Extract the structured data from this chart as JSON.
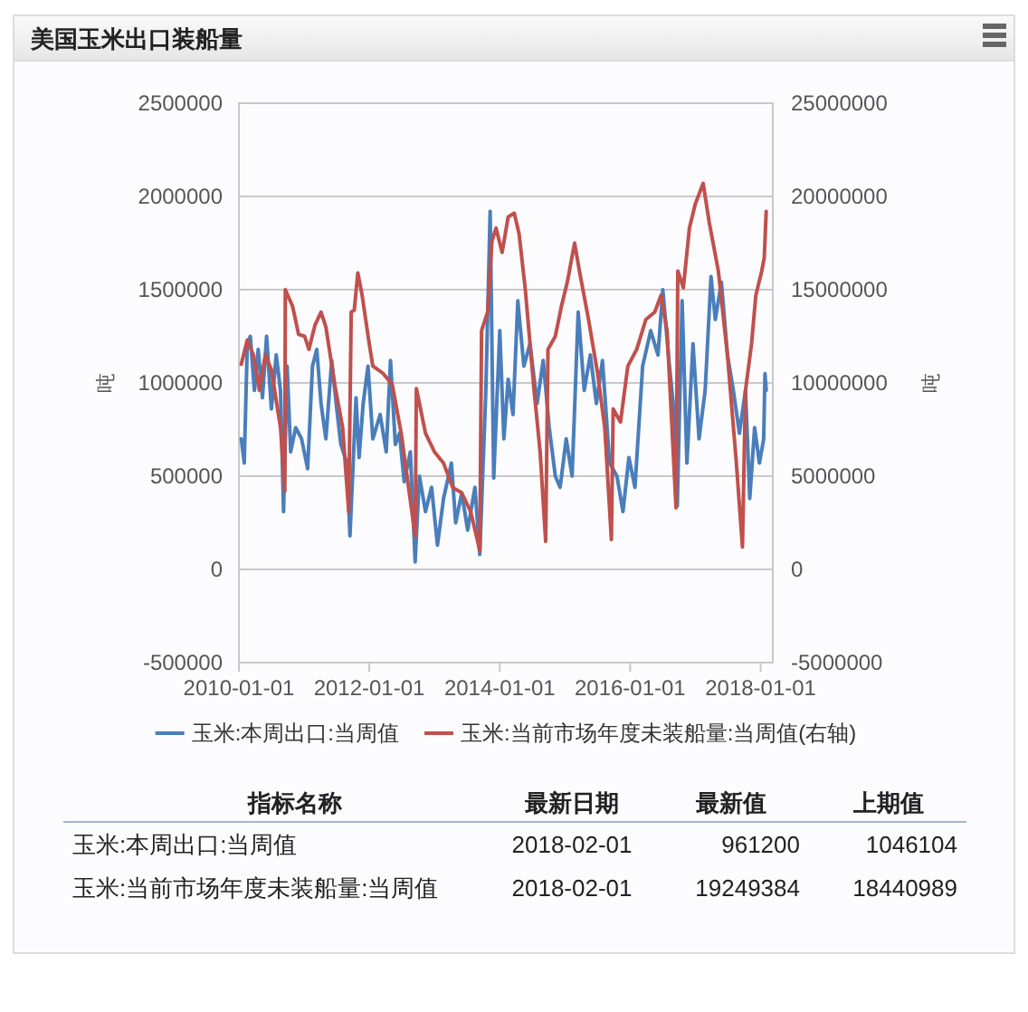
{
  "chart_data": {
    "type": "line",
    "title": "美国玉米出口装船量",
    "ylabel": "吨",
    "y2label": "吨",
    "xlim": [
      "2010-01-01",
      "2018-03-10"
    ],
    "xticks": [
      "2010-01-01",
      "2012-01-01",
      "2014-01-01",
      "2016-01-01",
      "2018-01-01"
    ],
    "ylim": [
      -500000,
      2500000
    ],
    "yticks": [
      -500000,
      0,
      500000,
      1000000,
      1500000,
      2000000,
      2500000
    ],
    "y2lim": [
      -5000000,
      25000000
    ],
    "y2ticks": [
      -5000000,
      0,
      5000000,
      10000000,
      15000000,
      20000000,
      25000000
    ],
    "grid": "y",
    "legend": "bottom",
    "series": [
      {
        "name": "玉米:本周出口:当周值",
        "color": "#4a7ebb",
        "x": [
          "2010-01-14",
          "2010-01-31",
          "2010-02-17",
          "2010-03-06",
          "2010-03-29",
          "2010-04-19",
          "2010-05-13",
          "2010-06-05",
          "2010-07-02",
          "2010-07-29",
          "2010-08-22",
          "2010-09-08",
          "2010-09-28",
          "2010-10-18",
          "2010-11-15",
          "2010-12-18",
          "2011-01-21",
          "2011-02-17",
          "2011-03-13",
          "2011-04-06",
          "2011-05-03",
          "2011-06-05",
          "2011-07-03",
          "2011-07-26",
          "2011-08-29",
          "2011-09-15",
          "2011-10-19",
          "2011-11-05",
          "2011-11-28",
          "2011-12-25",
          "2012-01-21",
          "2012-03-02",
          "2012-04-05",
          "2012-04-29",
          "2012-05-26",
          "2012-06-18",
          "2012-07-15",
          "2012-08-18",
          "2012-09-14",
          "2012-10-08",
          "2012-11-11",
          "2012-12-15",
          "2013-01-17",
          "2013-02-20",
          "2013-04-05",
          "2013-04-29",
          "2013-06-02",
          "2013-07-05",
          "2013-08-15",
          "2013-09-11",
          "2013-10-15",
          "2013-11-08",
          "2013-11-28",
          "2014-01-01",
          "2014-01-24",
          "2014-02-17",
          "2014-03-16",
          "2014-04-12",
          "2014-05-16",
          "2014-06-19",
          "2014-07-29",
          "2014-09-01",
          "2014-10-05",
          "2014-11-08",
          "2014-12-05",
          "2015-01-08",
          "2015-02-10",
          "2015-03-16",
          "2015-04-19",
          "2015-05-23",
          "2015-06-26",
          "2015-07-30",
          "2015-09-08",
          "2015-10-19",
          "2015-11-22",
          "2015-12-25",
          "2016-01-28",
          "2016-03-11",
          "2016-04-25",
          "2016-06-05",
          "2016-07-02",
          "2016-08-05",
          "2016-08-29",
          "2016-09-21",
          "2016-10-18",
          "2016-11-14",
          "2016-12-18",
          "2017-01-21",
          "2017-02-24",
          "2017-03-29",
          "2017-04-22",
          "2017-05-26",
          "2017-06-29",
          "2017-08-01",
          "2017-09-04",
          "2017-10-08",
          "2017-11-01",
          "2017-11-28",
          "2017-12-25",
          "2018-01-18",
          "2018-01-25",
          "2018-02-01"
        ],
        "values": [
          700000,
          570000,
          1210000,
          1250000,
          960000,
          1180000,
          920000,
          1250000,
          860000,
          1150000,
          960000,
          310000,
          1090000,
          630000,
          760000,
          700000,
          540000,
          1090000,
          1180000,
          890000,
          700000,
          1120000,
          860000,
          670000,
          570000,
          180000,
          920000,
          600000,
          890000,
          1090000,
          700000,
          830000,
          630000,
          1120000,
          670000,
          730000,
          470000,
          630000,
          40000,
          500000,
          310000,
          440000,
          130000,
          380000,
          570000,
          250000,
          410000,
          210000,
          440000,
          80000,
          960000,
          1920000,
          490000,
          1280000,
          700000,
          1020000,
          830000,
          1440000,
          1090000,
          1210000,
          890000,
          1120000,
          760000,
          500000,
          440000,
          700000,
          500000,
          1380000,
          960000,
          1150000,
          890000,
          1120000,
          570000,
          500000,
          310000,
          600000,
          440000,
          1090000,
          1280000,
          1150000,
          1500000,
          1120000,
          890000,
          340000,
          1440000,
          570000,
          1210000,
          700000,
          960000,
          1570000,
          1340000,
          1540000,
          1150000,
          960000,
          730000,
          960000,
          380000,
          760000,
          570000,
          700000,
          1050000,
          960000
        ]
      },
      {
        "name": "玉米:当前市场年度未装船量:当周值(右轴)",
        "color": "#c0504d",
        "axis": "y2",
        "x": [
          "2010-01-14",
          "2010-02-17",
          "2010-03-23",
          "2010-04-26",
          "2010-05-29",
          "2010-07-02",
          "2010-08-22",
          "2010-09-15",
          "2010-09-18",
          "2010-10-29",
          "2010-12-01",
          "2011-01-04",
          "2011-01-28",
          "2011-03-03",
          "2011-04-06",
          "2011-05-03",
          "2011-06-22",
          "2011-08-05",
          "2011-09-08",
          "2011-09-22",
          "2011-10-09",
          "2011-10-29",
          "2011-11-22",
          "2012-01-01",
          "2012-01-21",
          "2012-03-19",
          "2012-05-09",
          "2012-06-28",
          "2012-09-14",
          "2012-09-21",
          "2012-11-11",
          "2012-12-31",
          "2013-02-20",
          "2013-04-12",
          "2013-06-02",
          "2013-07-22",
          "2013-09-11",
          "2013-09-21",
          "2013-10-25",
          "2013-11-18",
          "2013-12-11",
          "2014-01-14",
          "2014-02-17",
          "2014-03-23",
          "2014-04-19",
          "2014-05-23",
          "2014-07-12",
          "2014-08-15",
          "2014-09-15",
          "2014-09-28",
          "2014-11-08",
          "2014-12-12",
          "2015-01-14",
          "2015-02-24",
          "2015-03-23",
          "2015-05-13",
          "2015-07-03",
          "2015-08-12",
          "2015-09-18",
          "2015-09-28",
          "2015-11-08",
          "2015-12-19",
          "2016-02-07",
          "2016-03-29",
          "2016-05-18",
          "2016-06-22",
          "2016-07-26",
          "2016-09-14",
          "2016-09-24",
          "2016-10-25",
          "2016-11-28",
          "2016-12-31",
          "2017-02-13",
          "2017-03-19",
          "2017-05-09",
          "2017-06-29",
          "2017-08-18",
          "2017-09-21",
          "2017-10-08",
          "2017-11-11",
          "2017-12-05",
          "2018-01-07",
          "2018-01-21",
          "2018-02-01"
        ],
        "values": [
          11000000,
          12300000,
          11500000,
          9600000,
          11500000,
          10700000,
          7600000,
          4200000,
          15000000,
          14100000,
          12600000,
          12500000,
          11800000,
          13100000,
          13800000,
          13000000,
          9900000,
          7600000,
          3100000,
          13800000,
          13900000,
          15900000,
          14700000,
          12100000,
          10900000,
          10500000,
          9900000,
          7300000,
          1800000,
          9700000,
          7300000,
          6300000,
          5700000,
          4400000,
          4100000,
          3100000,
          1000000,
          12800000,
          13800000,
          17600000,
          18300000,
          17000000,
          18900000,
          19100000,
          18000000,
          15100000,
          9600000,
          6300000,
          1500000,
          11800000,
          12500000,
          14100000,
          15400000,
          17500000,
          16000000,
          13400000,
          10500000,
          7600000,
          1600000,
          8600000,
          7900000,
          10900000,
          11800000,
          13400000,
          13800000,
          14700000,
          12800000,
          3300000,
          16000000,
          15100000,
          18300000,
          19600000,
          20700000,
          18600000,
          16000000,
          11500000,
          5700000,
          1200000,
          9600000,
          12100000,
          14700000,
          16000000,
          16700000,
          19200000
        ]
      }
    ],
    "annotations": [
      "指标名称",
      "最新日期",
      "最新值",
      "上期值",
      "玉米:本周出口:当周值",
      "2018-02-01",
      "961200",
      "1046104",
      "玉米:当前市场年度未装船量:当周值",
      "2018-02-01",
      "19249384",
      "18440989"
    ]
  }
}
